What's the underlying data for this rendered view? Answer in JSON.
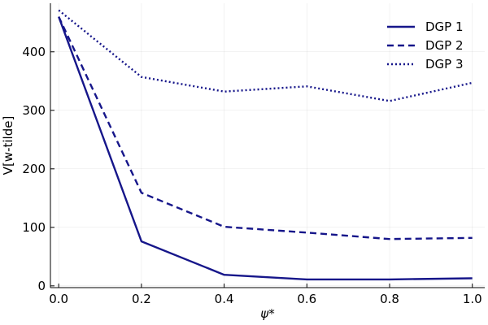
{
  "chart_data": {
    "type": "line",
    "xlabel": "ψ*",
    "ylabel": "V[w-tilde]",
    "xlim": [
      -0.02,
      1.03
    ],
    "ylim": [
      -3,
      483
    ],
    "x": [
      0.0,
      0.2,
      0.4,
      0.6,
      0.8,
      1.0
    ],
    "x_ticks": [
      0.0,
      0.2,
      0.4,
      0.6,
      0.8,
      1.0
    ],
    "x_tick_labels": [
      "0.0",
      "0.2",
      "0.4",
      "0.6",
      "0.8",
      "1.0"
    ],
    "y_ticks": [
      0,
      100,
      200,
      300,
      400
    ],
    "y_tick_labels": [
      "0",
      "100",
      "200",
      "300",
      "400"
    ],
    "grid": true,
    "legend_position": "top-right",
    "series": [
      {
        "name": "DGP 1",
        "values": [
          460,
          76,
          19,
          11,
          11,
          13
        ],
        "color": "#16168a",
        "dash": "solid"
      },
      {
        "name": "DGP 2",
        "values": [
          460,
          159,
          101,
          91,
          80,
          82
        ],
        "color": "#16168a",
        "dash": "dashed"
      },
      {
        "name": "DGP 3",
        "values": [
          471,
          357,
          332,
          341,
          316,
          347
        ],
        "color": "#16168a",
        "dash": "dotted"
      }
    ]
  }
}
